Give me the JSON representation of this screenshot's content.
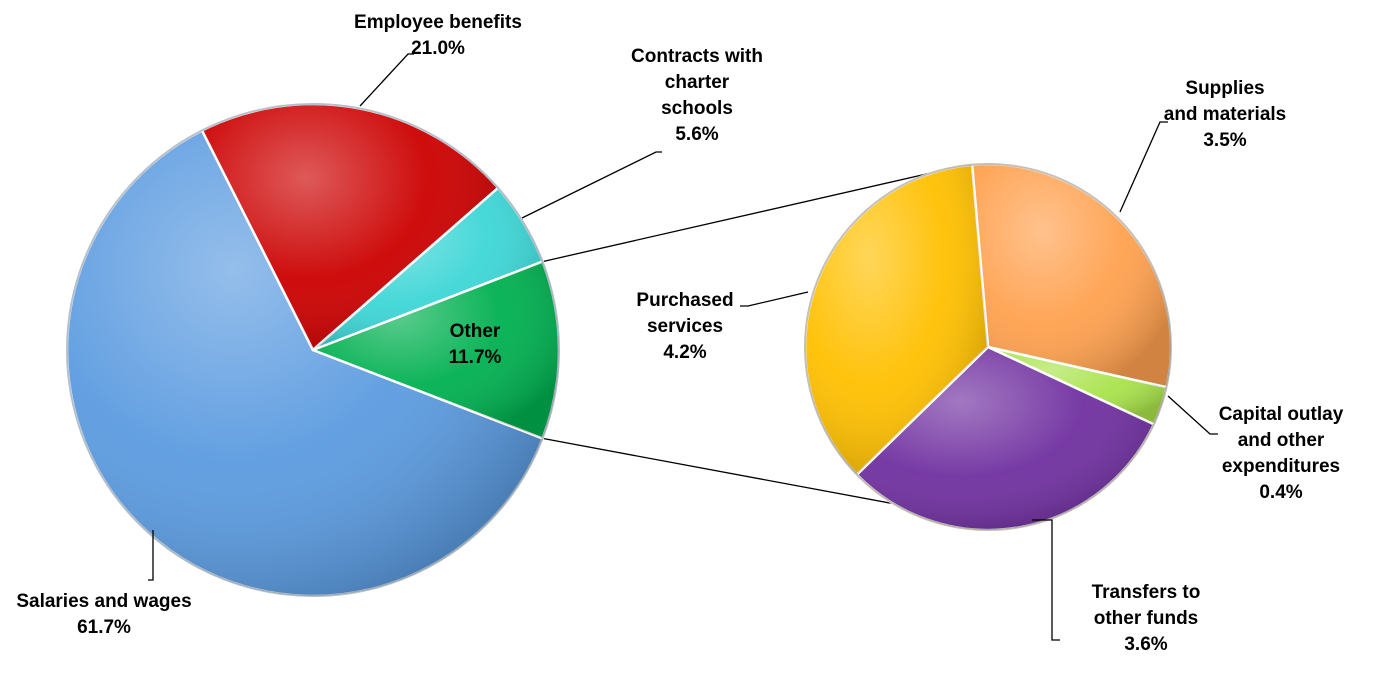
{
  "chart_data": {
    "type": "pie",
    "title": "",
    "main_pie": {
      "slices": [
        {
          "label": [
            "Salaries and wages"
          ],
          "value_label": "61.7%",
          "value": 61.7,
          "color": "#5b9be0"
        },
        {
          "label": [
            "Employee benefits"
          ],
          "value_label": "21.0%",
          "value": 21.0,
          "color": "#cc0000"
        },
        {
          "label": [
            "Contracts with",
            "charter",
            "schools"
          ],
          "value_label": "5.6%",
          "value": 5.6,
          "color": "#3dd6d6"
        },
        {
          "label": [
            "Other"
          ],
          "value_label": "11.7%",
          "value": 11.7,
          "color": "#00b050"
        }
      ]
    },
    "breakout_pie": {
      "of": "Other",
      "slices": [
        {
          "label": [
            "Supplies",
            "and materials"
          ],
          "value_label": "3.5%",
          "value": 3.5,
          "color": "#ffa14f"
        },
        {
          "label": [
            "Capital outlay",
            "and other",
            "expenditures"
          ],
          "value_label": "0.4%",
          "value": 0.4,
          "color": "#a9e34b"
        },
        {
          "label": [
            "Transfers to",
            "other funds"
          ],
          "value_label": "3.6%",
          "value": 3.6,
          "color": "#7030a0"
        },
        {
          "label": [
            "Purchased",
            "services"
          ],
          "value_label": "4.2%",
          "value": 4.2,
          "color": "#ffc000"
        }
      ]
    }
  }
}
